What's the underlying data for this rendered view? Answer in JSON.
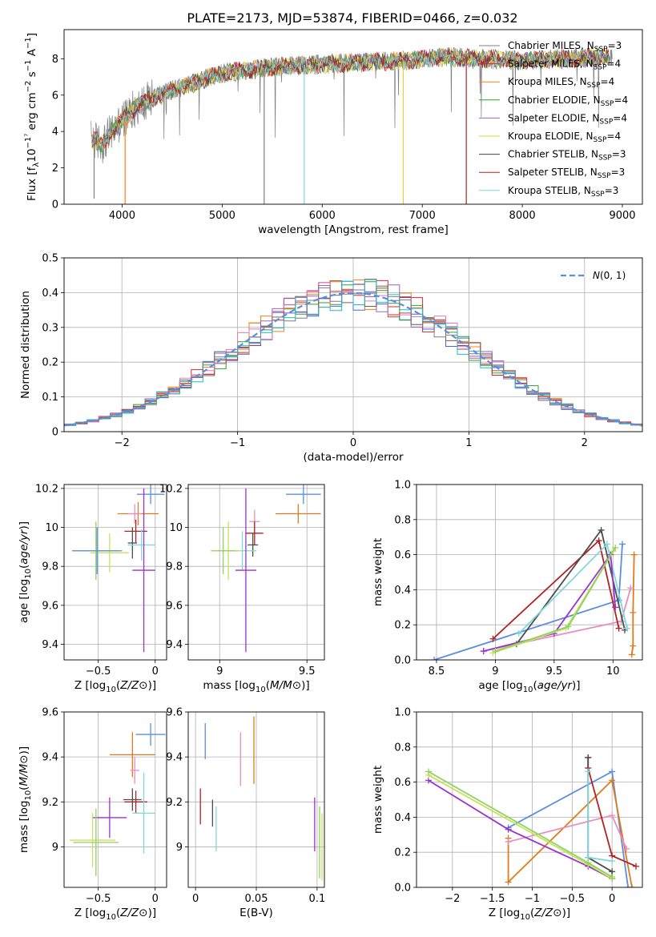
{
  "title": "PLATE=2173, MJD=53874, FIBERID=0466, z=0.032",
  "colors": {
    "model": [
      "#7f7f7f",
      "#d62728",
      "#ff7f0e",
      "#2ca02c",
      "#9467bd",
      "#e3d130",
      "#444444",
      "#b22222",
      "#7fd7db"
    ],
    "hist": [
      "#4169e1",
      "#2ca02c",
      "#ff7f0e",
      "#d62728",
      "#9467bd",
      "#8c564b",
      "#e377c2",
      "#17becf",
      "#7f7f7f"
    ],
    "fit": [
      "#5b8ee0",
      "#e07b1c",
      "#e88fc0",
      "#b22222",
      "#4d4d4d",
      "#7fd7db",
      "#9a32cd",
      "#c8e060",
      "#8fd35a"
    ]
  },
  "chart_data": [
    {
      "id": "spectrum",
      "type": "line",
      "xlabel": "wavelength [Angstrom, rest frame]",
      "ylabel": "Flux [fλ10⁻¹⁷ erg cm⁻² s⁻¹ A⁻¹]",
      "xlim": [
        3420,
        9200
      ],
      "ylim": [
        0,
        9.6
      ],
      "xticks": [
        4000,
        5000,
        6000,
        7000,
        8000,
        9000
      ],
      "yticks": [
        0,
        2,
        4,
        6,
        8
      ],
      "legend_position": "upper right",
      "series": [
        {
          "name": "Chabrier MILES, N",
          "sub": "SSP",
          "suffix": "=3"
        },
        {
          "name": "Salpeter MILES, N",
          "sub": "SSP",
          "suffix": "=4"
        },
        {
          "name": "Kroupa MILES, N",
          "sub": "SSP",
          "suffix": "=4"
        },
        {
          "name": "Chabrier ELODIE, N",
          "sub": "SSP",
          "suffix": "=4"
        },
        {
          "name": "Salpeter ELODIE, N",
          "sub": "SSP",
          "suffix": "=4"
        },
        {
          "name": "Kroupa ELODIE, N",
          "sub": "SSP",
          "suffix": "=4"
        },
        {
          "name": "Chabrier STELIB, N",
          "sub": "SSP",
          "suffix": "=3"
        },
        {
          "name": "Salpeter STELIB, N",
          "sub": "SSP",
          "suffix": "=3"
        },
        {
          "name": "Kroupa STELIB, N",
          "sub": "SSP",
          "suffix": "=3"
        }
      ],
      "continuum": {
        "x": [
          3700,
          3800,
          3900,
          4000,
          4100,
          4300,
          4500,
          4800,
          5000,
          5300,
          5600,
          6000,
          6400,
          6800,
          7200,
          7600,
          8000,
          8400,
          8800
        ],
        "y": [
          3.6,
          3.3,
          4.0,
          4.6,
          5.2,
          5.8,
          6.3,
          6.8,
          7.2,
          7.4,
          7.6,
          7.7,
          7.8,
          7.9,
          8.1,
          8.0,
          7.9,
          8.0,
          8.1
        ]
      },
      "dips": [
        {
          "x": 3720,
          "y": 0.3
        },
        {
          "x": 4030,
          "y": 0.0
        },
        {
          "x": 5420,
          "y": 0.0
        },
        {
          "x": 5820,
          "y": 0.0
        },
        {
          "x": 6810,
          "y": 0.0
        },
        {
          "x": 7440,
          "y": 0.0
        }
      ]
    },
    {
      "id": "residuals",
      "type": "histogram",
      "xlabel": "(data-model)/error",
      "ylabel": "Normed distribution",
      "xlim": [
        -2.5,
        2.5
      ],
      "ylim": [
        0,
        0.5
      ],
      "xticks": [
        -2,
        -1,
        0,
        1,
        2
      ],
      "yticks": [
        0.0,
        0.1,
        0.2,
        0.3,
        0.4,
        0.5
      ],
      "bin_width": 0.1,
      "legend_label": "N(0,1)",
      "legend_position": "upper right"
    },
    {
      "id": "age-vs-z",
      "type": "scatter",
      "xlabel": "Z [log10(Z/Z⊙)]",
      "ylabel": "age [log10(age/yr)]",
      "xlim": [
        -0.8,
        0.1
      ],
      "ylim": [
        9.32,
        10.22
      ],
      "xticks": [
        -0.5,
        0.0
      ],
      "yticks": [
        9.4,
        9.6,
        9.8,
        10.0,
        10.2
      ],
      "points": [
        {
          "x": -0.04,
          "y": 10.17,
          "xerr": 0.12,
          "yerr": 0.05
        },
        {
          "x": -0.15,
          "y": 10.07,
          "xerr": 0.18,
          "yerr": 0.06
        },
        {
          "x": -0.18,
          "y": 10.07,
          "xerr": 0.06,
          "yerr": 0.05
        },
        {
          "x": -0.17,
          "y": 9.98,
          "xerr": 0.1,
          "yerr": 0.06
        },
        {
          "x": -0.2,
          "y": 9.92,
          "xerr": 0.04,
          "yerr": 0.08
        },
        {
          "x": -0.12,
          "y": 9.91,
          "xerr": 0.12,
          "yerr": 0.08
        },
        {
          "x": -0.1,
          "y": 9.78,
          "xerr": 0.1,
          "yerr": 0.42
        },
        {
          "x": -0.4,
          "y": 9.87,
          "xerr": 0.17,
          "yerr": 0.1
        },
        {
          "x": -0.52,
          "y": 9.88,
          "xerr": 0.2,
          "yerr": 0.15
        },
        {
          "x": -0.51,
          "y": 9.88,
          "xerr": 0.22,
          "yerr": 0.12
        }
      ]
    },
    {
      "id": "age-vs-mass",
      "type": "scatter",
      "xlabel": "mass [log10(M/M⊙)]",
      "ylabel": "",
      "xlim": [
        8.82,
        9.6
      ],
      "ylim": [
        9.32,
        10.22
      ],
      "xticks": [
        9.0,
        9.5
      ],
      "yticks": [
        9.4,
        9.6,
        9.8,
        10.0,
        10.2
      ],
      "points": [
        {
          "x": 9.48,
          "y": 10.17,
          "xerr": 0.1,
          "yerr": 0.05
        },
        {
          "x": 9.45,
          "y": 10.07,
          "xerr": 0.13,
          "yerr": 0.05
        },
        {
          "x": 9.2,
          "y": 10.03,
          "xerr": 0.03,
          "yerr": 0.06
        },
        {
          "x": 9.2,
          "y": 9.97,
          "xerr": 0.05,
          "yerr": 0.06
        },
        {
          "x": 9.19,
          "y": 9.91,
          "xerr": 0.03,
          "yerr": 0.06
        },
        {
          "x": 9.13,
          "y": 9.88,
          "xerr": 0.08,
          "yerr": 0.1
        },
        {
          "x": 9.15,
          "y": 9.78,
          "xerr": 0.06,
          "yerr": 0.42
        },
        {
          "x": 9.05,
          "y": 9.88,
          "xerr": 0.07,
          "yerr": 0.15
        },
        {
          "x": 9.02,
          "y": 9.88,
          "xerr": 0.07,
          "yerr": 0.12
        }
      ]
    },
    {
      "id": "weight-vs-age",
      "type": "line",
      "xlabel": "age [log10(age/yr)]",
      "ylabel": "mass weight",
      "xlim": [
        8.33,
        10.25
      ],
      "ylim": [
        0,
        1
      ],
      "xticks": [
        8.5,
        9.0,
        9.5,
        10.0
      ],
      "yticks": [
        0.0,
        0.2,
        0.4,
        0.6,
        0.8,
        1.0
      ],
      "series": [
        {
          "x": [
            8.48,
            10.05,
            10.08
          ],
          "y": [
            0.0,
            0.34,
            0.66
          ]
        },
        {
          "x": [
            10.16,
            10.17,
            10.17,
            10.18
          ],
          "y": [
            0.03,
            0.08,
            0.27,
            0.6
          ]
        },
        {
          "x": [
            8.9,
            10.07,
            10.15
          ],
          "y": [
            0.05,
            0.22,
            0.41
          ]
        },
        {
          "x": [
            8.98,
            9.88,
            10.05
          ],
          "y": [
            0.12,
            0.68,
            0.18
          ]
        },
        {
          "x": [
            9.18,
            9.9,
            10.1
          ],
          "y": [
            0.09,
            0.74,
            0.17
          ]
        },
        {
          "x": [
            9.2,
            9.95,
            10.12
          ],
          "y": [
            0.15,
            0.66,
            0.18
          ]
        },
        {
          "x": [
            8.9,
            9.5,
            9.98,
            10.02
          ],
          "y": [
            0.05,
            0.15,
            0.6,
            0.3
          ]
        },
        {
          "x": [
            8.98,
            9.6,
            10.0
          ],
          "y": [
            0.04,
            0.18,
            0.62
          ]
        },
        {
          "x": [
            9.0,
            9.62,
            10.02
          ],
          "y": [
            0.05,
            0.19,
            0.64
          ]
        }
      ]
    },
    {
      "id": "mass-vs-z",
      "type": "scatter",
      "xlabel": "Z [log10(Z/Z⊙)]",
      "ylabel": "mass [log10(M/M⊙)]",
      "xlim": [
        -0.8,
        0.1
      ],
      "ylim": [
        8.82,
        9.6
      ],
      "xticks": [
        -0.5,
        0.0
      ],
      "yticks": [
        9.0,
        9.2,
        9.4,
        9.6
      ],
      "points": [
        {
          "x": -0.04,
          "y": 9.5,
          "xerr": 0.13,
          "yerr": 0.05
        },
        {
          "x": -0.2,
          "y": 9.41,
          "xerr": 0.2,
          "yerr": 0.1
        },
        {
          "x": -0.18,
          "y": 9.34,
          "xerr": 0.04,
          "yerr": 0.06
        },
        {
          "x": -0.17,
          "y": 9.2,
          "xerr": 0.1,
          "yerr": 0.05
        },
        {
          "x": -0.2,
          "y": 9.21,
          "xerr": 0.08,
          "yerr": 0.05
        },
        {
          "x": -0.1,
          "y": 9.15,
          "xerr": 0.1,
          "yerr": 0.18
        },
        {
          "x": -0.4,
          "y": 9.13,
          "xerr": 0.15,
          "yerr": 0.09
        },
        {
          "x": -0.55,
          "y": 9.03,
          "xerr": 0.2,
          "yerr": 0.12
        },
        {
          "x": -0.52,
          "y": 9.02,
          "xerr": 0.2,
          "yerr": 0.15
        }
      ]
    },
    {
      "id": "mass-vs-ebv",
      "type": "scatter",
      "xlabel": "E(B-V)",
      "ylabel": "",
      "xlim": [
        -0.006,
        0.106
      ],
      "ylim": [
        8.82,
        9.6
      ],
      "xticks": [
        0.0,
        0.05,
        0.1
      ],
      "yticks": [
        9.0,
        9.2,
        9.4,
        9.6
      ],
      "points": [
        {
          "x": 0.008,
          "y": 9.47,
          "yerr": 0.08
        },
        {
          "x": 0.048,
          "y": 9.43,
          "yerr": 0.15
        },
        {
          "x": 0.037,
          "y": 9.39,
          "yerr": 0.12
        },
        {
          "x": 0.004,
          "y": 9.18,
          "yerr": 0.08
        },
        {
          "x": 0.014,
          "y": 9.15,
          "yerr": 0.06
        },
        {
          "x": 0.017,
          "y": 9.08,
          "yerr": 0.1
        },
        {
          "x": 0.098,
          "y": 9.1,
          "yerr": 0.12
        },
        {
          "x": 0.104,
          "y": 9.0,
          "yerr": 0.15
        },
        {
          "x": 0.102,
          "y": 9.02,
          "yerr": 0.16
        }
      ]
    },
    {
      "id": "weight-vs-z",
      "type": "line",
      "xlabel": "Z [log10(Z/Z⊙)]",
      "ylabel": "mass weight",
      "xlim": [
        -2.45,
        0.38
      ],
      "ylim": [
        0,
        1
      ],
      "xticks": [
        -2.0,
        -1.5,
        -1.0,
        -0.5,
        0.0
      ],
      "yticks": [
        0.0,
        0.2,
        0.4,
        0.6,
        0.8,
        1.0
      ],
      "series": [
        {
          "x": [
            -1.3,
            0.0,
            0.2
          ],
          "y": [
            0.34,
            0.66,
            0.0
          ]
        },
        {
          "x": [
            -1.3,
            -1.3,
            0.0,
            0.25
          ],
          "y": [
            0.28,
            0.03,
            0.61,
            0.0
          ]
        },
        {
          "x": [
            -1.3,
            0.0,
            0.18
          ],
          "y": [
            0.26,
            0.41,
            0.22
          ]
        },
        {
          "x": [
            -0.3,
            -0.3,
            0.0,
            0.3
          ],
          "y": [
            0.74,
            0.68,
            0.18,
            0.12
          ]
        },
        {
          "x": [
            -0.3,
            -0.3,
            0.0,
            0.0
          ],
          "y": [
            0.74,
            0.17,
            0.09,
            0.05
          ]
        },
        {
          "x": [
            -0.3,
            -0.3,
            0.0
          ],
          "y": [
            0.66,
            0.17,
            0.15
          ]
        },
        {
          "x": [
            -2.3,
            -1.3,
            -0.3,
            0.0
          ],
          "y": [
            0.61,
            0.33,
            0.12,
            0.05
          ]
        },
        {
          "x": [
            -2.3,
            -0.3,
            0.0
          ],
          "y": [
            0.64,
            0.13,
            0.05
          ]
        },
        {
          "x": [
            -2.3,
            -0.3,
            0.0
          ],
          "y": [
            0.66,
            0.14,
            0.06
          ]
        }
      ]
    }
  ]
}
